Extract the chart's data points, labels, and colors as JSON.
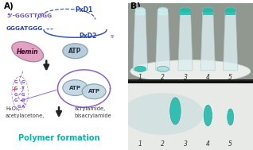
{
  "panel_A_label": "A)",
  "panel_B_label": "B)",
  "background_color": "#ffffff",
  "seq1": "5’-GGGTTGGG",
  "seq2": "GGGATGGG",
  "pxd1": "PxD1",
  "pxd2": "PxD2",
  "hemin_label": "Hemin",
  "atp_label": "ATP",
  "reaction_left": "H₂O₂,\nacetylacetone,",
  "reaction_right": "acrylamide,\nbisacrylamide",
  "polymer_label": "Polymer formation",
  "tube_numbers": [
    "1",
    "2",
    "3",
    "4",
    "5"
  ],
  "seq1_color": "#7744cc",
  "seq2_color": "#2244aa",
  "pxd_color": "#2244aa",
  "polymer_color": "#00bbaa",
  "hemin_fill": "#dd99bb",
  "atp_fill": "#b0c8d8",
  "arrow_color": "#222222",
  "dna_structure_color": "#7744cc",
  "figsize": [
    3.18,
    1.89
  ],
  "dpi": 100,
  "upper_bg": "#b0b8b0",
  "lower_bg": "#d0d4cc",
  "tube_body_color": "#cce8e8",
  "tube_edge_color": "#99bbbb",
  "teal_color": "#22bbaa",
  "teal_dark": "#119988",
  "pale_teal": "#88cccc"
}
